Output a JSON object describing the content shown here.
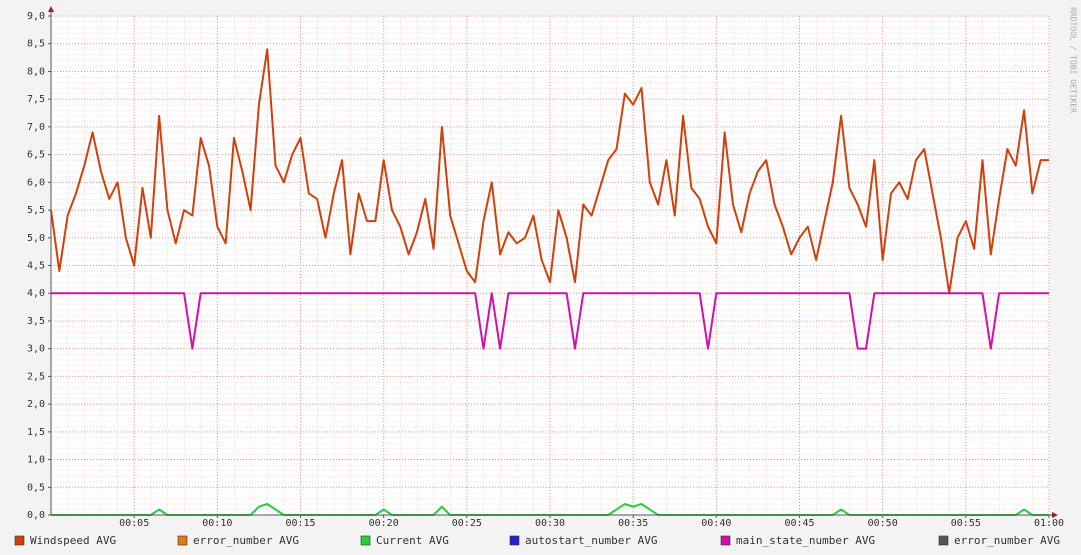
{
  "chart_data": {
    "type": "line",
    "watermark": "RRDTOOL / TOBI OETIKER",
    "xlim": [
      0,
      60
    ],
    "ylim": [
      0,
      9
    ],
    "grid": true,
    "xticks": [
      {
        "value": 5,
        "label": "00:05"
      },
      {
        "value": 10,
        "label": "00:10"
      },
      {
        "value": 15,
        "label": "00:15"
      },
      {
        "value": 20,
        "label": "00:20"
      },
      {
        "value": 25,
        "label": "00:25"
      },
      {
        "value": 30,
        "label": "00:30"
      },
      {
        "value": 35,
        "label": "00:35"
      },
      {
        "value": 40,
        "label": "00:40"
      },
      {
        "value": 45,
        "label": "00:45"
      },
      {
        "value": 50,
        "label": "00:50"
      },
      {
        "value": 55,
        "label": "00:55"
      },
      {
        "value": 60,
        "label": "01:00"
      }
    ],
    "yticks": [
      {
        "value": 0,
        "label": "0,0"
      },
      {
        "value": 0.5,
        "label": "0,5"
      },
      {
        "value": 1,
        "label": "1,0"
      },
      {
        "value": 1.5,
        "label": "1,5"
      },
      {
        "value": 2,
        "label": "2,0"
      },
      {
        "value": 2.5,
        "label": "2,5"
      },
      {
        "value": 3,
        "label": "3,0"
      },
      {
        "value": 3.5,
        "label": "3,5"
      },
      {
        "value": 4,
        "label": "4,0"
      },
      {
        "value": 4.5,
        "label": "4,5"
      },
      {
        "value": 5,
        "label": "5,0"
      },
      {
        "value": 5.5,
        "label": "5,5"
      },
      {
        "value": 6,
        "label": "6,0"
      },
      {
        "value": 6.5,
        "label": "6,5"
      },
      {
        "value": 7,
        "label": "7,0"
      },
      {
        "value": 7.5,
        "label": "7,5"
      },
      {
        "value": 8,
        "label": "8,0"
      },
      {
        "value": 8.5,
        "label": "8,5"
      },
      {
        "value": 9,
        "label": "9,0"
      }
    ],
    "x": [
      0,
      0.5,
      1,
      1.5,
      2,
      2.5,
      3,
      3.5,
      4,
      4.5,
      5,
      5.5,
      6,
      6.5,
      7,
      7.5,
      8,
      8.5,
      9,
      9.5,
      10,
      10.5,
      11,
      11.5,
      12,
      12.5,
      13,
      13.5,
      14,
      14.5,
      15,
      15.5,
      16,
      16.5,
      17,
      17.5,
      18,
      18.5,
      19,
      19.5,
      20,
      20.5,
      21,
      21.5,
      22,
      22.5,
      23,
      23.5,
      24,
      24.5,
      25,
      25.5,
      26,
      26.5,
      27,
      27.5,
      28,
      28.5,
      29,
      29.5,
      30,
      30.5,
      31,
      31.5,
      32,
      32.5,
      33,
      33.5,
      34,
      34.5,
      35,
      35.5,
      36,
      36.5,
      37,
      37.5,
      38,
      38.5,
      39,
      39.5,
      40,
      40.5,
      41,
      41.5,
      42,
      42.5,
      43,
      43.5,
      44,
      44.5,
      45,
      45.5,
      46,
      46.5,
      47,
      47.5,
      48,
      48.5,
      49,
      49.5,
      50,
      50.5,
      51,
      51.5,
      52,
      52.5,
      53,
      53.5,
      54,
      54.5,
      55,
      55.5,
      56,
      56.5,
      57,
      57.5,
      58,
      58.5,
      59,
      59.5,
      60
    ],
    "series": [
      {
        "name": "Windspeed AVG",
        "color": "#d0400c",
        "values": [
          5.5,
          4.4,
          5.4,
          5.8,
          6.3,
          6.9,
          6.2,
          5.7,
          6.0,
          5.0,
          4.5,
          5.9,
          5.0,
          7.2,
          5.5,
          4.9,
          5.5,
          5.4,
          6.8,
          6.3,
          5.2,
          4.9,
          6.8,
          6.2,
          5.5,
          7.4,
          8.4,
          6.3,
          6.0,
          6.5,
          6.8,
          5.8,
          5.7,
          5.0,
          5.8,
          6.4,
          4.7,
          5.8,
          5.3,
          5.3,
          6.4,
          5.5,
          5.2,
          4.7,
          5.1,
          5.7,
          4.8,
          7.0,
          5.4,
          4.9,
          4.4,
          4.2,
          5.3,
          6.0,
          4.7,
          5.1,
          4.9,
          5.0,
          5.4,
          4.6,
          4.2,
          5.5,
          5.0,
          4.2,
          5.6,
          5.4,
          5.9,
          6.4,
          6.6,
          7.6,
          7.4,
          7.7,
          6.0,
          5.6,
          6.4,
          5.4,
          7.2,
          5.9,
          5.7,
          5.2,
          4.9,
          6.9,
          5.6,
          5.1,
          5.8,
          6.2,
          6.4,
          5.6,
          5.2,
          4.7,
          5.0,
          5.2,
          4.6,
          5.3,
          6.0,
          7.2,
          5.9,
          5.6,
          5.2,
          6.4,
          4.6,
          5.8,
          6.0,
          5.7,
          6.4,
          6.6,
          5.8,
          5.0,
          4.0,
          5.0,
          5.3,
          4.8,
          6.4,
          4.7,
          5.7,
          6.6,
          6.3,
          7.3,
          5.8,
          6.4,
          6.4
        ]
      },
      {
        "name": "error_number AVG",
        "color": "#e07a14"
      },
      {
        "name": "Current AVG",
        "color": "#22d03a",
        "values": [
          0,
          0,
          0,
          0,
          0,
          0,
          0,
          0,
          0,
          0,
          0,
          0,
          0,
          0.1,
          0,
          0,
          0,
          0,
          0,
          0,
          0,
          0,
          0,
          0,
          0,
          0.15,
          0.2,
          0.1,
          0,
          0,
          0,
          0,
          0,
          0,
          0,
          0,
          0,
          0,
          0,
          0,
          0.1,
          0,
          0,
          0,
          0,
          0,
          0,
          0.15,
          0,
          0,
          0,
          0,
          0,
          0,
          0,
          0,
          0,
          0,
          0,
          0,
          0,
          0,
          0,
          0,
          0,
          0,
          0,
          0,
          0.1,
          0.2,
          0.15,
          0.2,
          0.1,
          0,
          0,
          0,
          0,
          0,
          0,
          0,
          0,
          0,
          0,
          0,
          0,
          0,
          0,
          0,
          0,
          0,
          0,
          0,
          0,
          0,
          0,
          0.1,
          0,
          0,
          0,
          0,
          0,
          0,
          0,
          0,
          0,
          0,
          0,
          0,
          0,
          0,
          0,
          0,
          0,
          0,
          0,
          0,
          0,
          0.1,
          0,
          0,
          0
        ]
      },
      {
        "name": "autostart_number AVG",
        "color": "#2a1fd0"
      },
      {
        "name": "main_state_number AVG",
        "color": "#d010a8",
        "values": [
          4,
          4,
          4,
          4,
          4,
          4,
          4,
          4,
          4,
          4,
          4,
          4,
          4,
          4,
          4,
          4,
          4,
          3,
          4,
          4,
          4,
          4,
          4,
          4,
          4,
          4,
          4,
          4,
          4,
          4,
          4,
          4,
          4,
          4,
          4,
          4,
          4,
          4,
          4,
          4,
          4,
          4,
          4,
          4,
          4,
          4,
          4,
          4,
          4,
          4,
          4,
          4,
          3,
          4,
          3,
          4,
          4,
          4,
          4,
          4,
          4,
          4,
          4,
          3,
          4,
          4,
          4,
          4,
          4,
          4,
          4,
          4,
          4,
          4,
          4,
          4,
          4,
          4,
          4,
          3,
          4,
          4,
          4,
          4,
          4,
          4,
          4,
          4,
          4,
          4,
          4,
          4,
          4,
          4,
          4,
          4,
          4,
          3,
          3,
          4,
          4,
          4,
          4,
          4,
          4,
          4,
          4,
          4,
          4,
          4,
          4,
          4,
          4,
          3,
          4,
          4,
          4,
          4,
          4,
          4,
          4
        ]
      },
      {
        "name": "error_number AVG",
        "color": "#555555"
      }
    ]
  }
}
